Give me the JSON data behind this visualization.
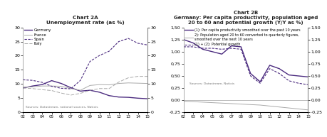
{
  "chart2A": {
    "title": "Chart 2A",
    "subtitle": "Unemployment rate (as %)",
    "years": [
      2002,
      2003,
      2004,
      2005,
      2006,
      2007,
      2008,
      2009,
      2010,
      2011,
      2012,
      2013,
      2014,
      2015
    ],
    "germany": [
      8.6,
      9.3,
      9.8,
      11.2,
      10.2,
      8.7,
      7.5,
      7.8,
      7.1,
      5.9,
      5.4,
      5.3,
      5.0,
      4.8
    ],
    "france": [
      8.9,
      9.0,
      9.3,
      9.3,
      9.2,
      8.4,
      7.8,
      9.5,
      9.8,
      9.7,
      10.2,
      10.4,
      10.3,
      10.2
    ],
    "spain": [
      11.5,
      11.3,
      10.6,
      9.2,
      8.5,
      8.3,
      11.3,
      18.0,
      20.1,
      21.6,
      25.0,
      26.1,
      24.4,
      23.8
    ],
    "italy": [
      8.6,
      8.4,
      8.0,
      7.7,
      6.8,
      6.1,
      6.7,
      7.8,
      8.4,
      8.4,
      10.7,
      12.2,
      12.7,
      12.7
    ],
    "ylim": [
      0,
      30
    ],
    "yticks": [
      0,
      5,
      10,
      15,
      20,
      25,
      30
    ],
    "source": "Sources: Datastream, national sources, Natixis"
  },
  "chart2B": {
    "title": "Chart 2B",
    "subtitle": "Germany: Per capita productivity, population aged\n20 to 60 and potential growth (Y/Y as %)",
    "years": [
      2002,
      2003,
      2004,
      2005,
      2006,
      2007,
      2008,
      2009,
      2010,
      2011,
      2012,
      2013,
      2014,
      2015
    ],
    "prod": [
      1.25,
      1.18,
      1.05,
      1.0,
      0.95,
      1.12,
      1.1,
      0.55,
      0.38,
      0.72,
      0.65,
      0.52,
      0.5,
      0.48
    ],
    "pop": [
      -0.02,
      -0.03,
      -0.04,
      -0.05,
      -0.06,
      -0.07,
      -0.08,
      -0.09,
      -0.1,
      -0.12,
      -0.14,
      -0.16,
      -0.18,
      -0.2
    ],
    "potential": [
      1.1,
      1.1,
      1.07,
      1.07,
      1.05,
      1.07,
      1.05,
      0.5,
      0.35,
      0.65,
      0.55,
      0.4,
      0.35,
      0.32
    ],
    "ylim": [
      -0.25,
      1.5
    ],
    "yticks": [
      -0.25,
      0.0,
      0.25,
      0.5,
      0.75,
      1.0,
      1.25,
      1.5
    ],
    "legend1": "(1): Per capita productivity smoothed over the past 10 years",
    "legend2": "2): Population aged 20 to 60 converted to quarterly figures,\nsmoothed over the next 10 years",
    "legend3": "(1) + (2): Potential growth",
    "source": "Sources: Datastream, Natixis"
  },
  "color_purple": "#4b2b7f",
  "color_gray": "#aaaaaa",
  "color_purple_dashed": "#6b3fa0"
}
